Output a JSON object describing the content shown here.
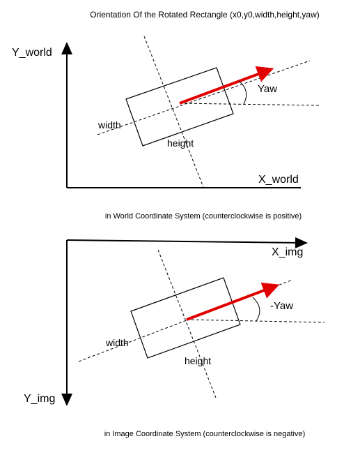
{
  "title": "Orientation Of the Rotated Rectangle (x0,y0,width,height,yaw)",
  "world": {
    "y_axis_label": "Y_world",
    "x_axis_label": "X_world",
    "angle_label": "Yaw",
    "width_label": "width",
    "height_label": "height",
    "caption": "in World Coordinate System (counterclockwise is positive)"
  },
  "image": {
    "x_axis_label": "X_img",
    "y_axis_label": "Y_img",
    "angle_label": "-Yaw",
    "width_label": "width",
    "height_label": "height",
    "caption": "in Image Coordinate System (counterclockwise is negative)"
  },
  "colors": {
    "arrow": "#e00000",
    "line": "#000000"
  }
}
